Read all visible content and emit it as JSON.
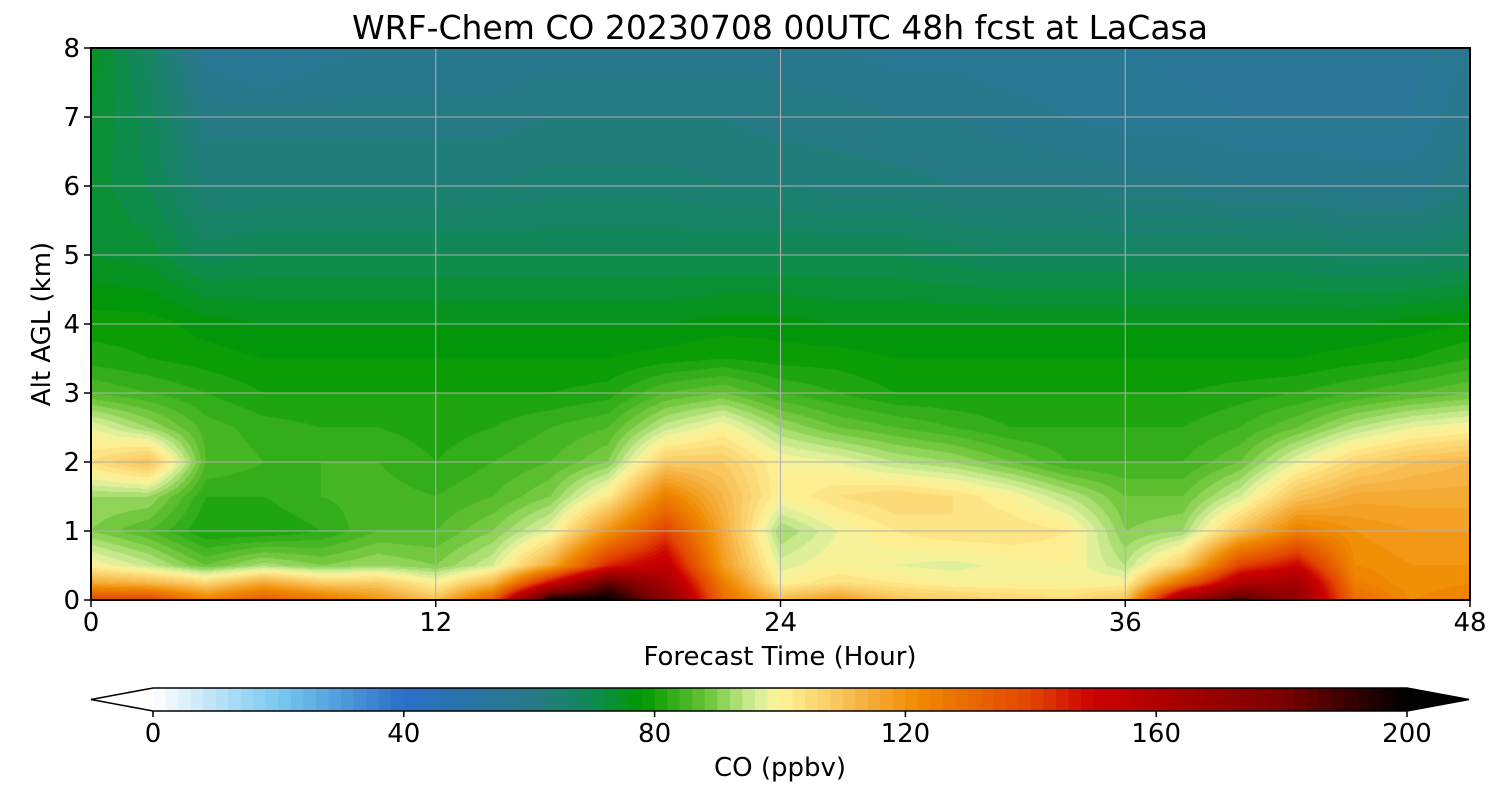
{
  "chart_data": {
    "type": "heatmap",
    "title": "WRF-Chem CO  20230708 00UTC 48h fcst at LaCasa",
    "xlabel": "Forecast Time (Hour)",
    "ylabel": "Alt AGL (km)",
    "xlim": [
      0,
      48
    ],
    "ylim": [
      0,
      8
    ],
    "x_ticks": [
      0,
      12,
      24,
      36,
      48
    ],
    "y_ticks": [
      0,
      1,
      2,
      3,
      4,
      5,
      6,
      7,
      8
    ],
    "grid": true,
    "x": [
      0,
      2,
      4,
      6,
      8,
      10,
      12,
      14,
      16,
      18,
      20,
      22,
      24,
      26,
      28,
      30,
      32,
      34,
      36,
      38,
      40,
      42,
      44,
      46,
      48
    ],
    "y": [
      0,
      0.25,
      0.5,
      1,
      1.5,
      2,
      2.5,
      3,
      3.5,
      4,
      5,
      6,
      7,
      8
    ],
    "z": [
      [
        140,
        140,
        125,
        135,
        128,
        120,
        110,
        135,
        200,
        200,
        175,
        130,
        112,
        118,
        110,
        108,
        106,
        105,
        110,
        170,
        190,
        170,
        130,
        122,
        125
      ],
      [
        115,
        112,
        106,
        115,
        108,
        108,
        100,
        112,
        150,
        185,
        165,
        125,
        100,
        104,
        102,
        100,
        100,
        100,
        100,
        130,
        160,
        165,
        125,
        120,
        122
      ],
      [
        100,
        95,
        88,
        93,
        90,
        92,
        90,
        96,
        115,
        145,
        155,
        118,
        97,
        100,
        98,
        97,
        99,
        100,
        94,
        108,
        140,
        150,
        122,
        120,
        120
      ],
      [
        90,
        86,
        80,
        80,
        82,
        86,
        86,
        90,
        98,
        120,
        140,
        115,
        92,
        98,
        102,
        104,
        104,
        102,
        90,
        92,
        110,
        125,
        120,
        118,
        118
      ],
      [
        92,
        92,
        82,
        82,
        84,
        85,
        84,
        86,
        90,
        102,
        125,
        112,
        100,
        104,
        106,
        104,
        100,
        94,
        88,
        88,
        96,
        110,
        115,
        115,
        115
      ],
      [
        104,
        110,
        86,
        84,
        84,
        84,
        82,
        84,
        86,
        90,
        108,
        108,
        100,
        98,
        94,
        92,
        88,
        84,
        84,
        84,
        88,
        98,
        106,
        110,
        112
      ],
      [
        98,
        92,
        85,
        83,
        82,
        82,
        81,
        82,
        84,
        86,
        95,
        100,
        92,
        88,
        86,
        84,
        82,
        82,
        82,
        82,
        84,
        88,
        94,
        98,
        100
      ],
      [
        86,
        84,
        82,
        80,
        80,
        80,
        80,
        80,
        80,
        81,
        86,
        88,
        84,
        82,
        80,
        80,
        80,
        80,
        80,
        80,
        81,
        82,
        84,
        86,
        88
      ],
      [
        81,
        80,
        79,
        78,
        78,
        78,
        78,
        78,
        78,
        78,
        79,
        80,
        79,
        79,
        78,
        78,
        78,
        78,
        78,
        78,
        78,
        78,
        79,
        80,
        82
      ],
      [
        79,
        79,
        77,
        76,
        76,
        76,
        76,
        76,
        76,
        76,
        76,
        77,
        77,
        76,
        76,
        76,
        76,
        76,
        76,
        76,
        76,
        76,
        76,
        77,
        78
      ],
      [
        74,
        73,
        69,
        70,
        70,
        70,
        70,
        70,
        70,
        70,
        70,
        70,
        70,
        70,
        70,
        69,
        68,
        68,
        68,
        68,
        68,
        68,
        67,
        67,
        68
      ],
      [
        73,
        70,
        64,
        64,
        64,
        64,
        64,
        64,
        65,
        65,
        65,
        64,
        64,
        63,
        63,
        62,
        62,
        62,
        61,
        61,
        60,
        60,
        59,
        59,
        62
      ],
      [
        74,
        69,
        61,
        61,
        61,
        61,
        61,
        61,
        62,
        62,
        62,
        62,
        61,
        61,
        60,
        60,
        59,
        58,
        57,
        57,
        56,
        56,
        56,
        56,
        60
      ],
      [
        75,
        67,
        57,
        54,
        57,
        58,
        58,
        58,
        59,
        59,
        59,
        59,
        59,
        58,
        57,
        57,
        56,
        56,
        56,
        55,
        54,
        54,
        55,
        55,
        58
      ]
    ],
    "colorbar": {
      "label": "CO  (ppbv)",
      "min": 0,
      "max": 200,
      "ticks": [
        0,
        40,
        80,
        120,
        160,
        200
      ],
      "extend": "both",
      "levels": 100
    }
  },
  "colors": {
    "stops": [
      [
        0,
        "#ffffff"
      ],
      [
        20,
        "#78c8f0"
      ],
      [
        40,
        "#2a6fc7"
      ],
      [
        60,
        "#28788a"
      ],
      [
        70,
        "#0f8a55"
      ],
      [
        78,
        "#009900"
      ],
      [
        88,
        "#66c233"
      ],
      [
        96,
        "#d5ee99"
      ],
      [
        100,
        "#fff399"
      ],
      [
        112,
        "#f7b84a"
      ],
      [
        122,
        "#f08a00"
      ],
      [
        140,
        "#e24400"
      ],
      [
        150,
        "#cc0000"
      ],
      [
        180,
        "#7a0000"
      ],
      [
        200,
        "#000000"
      ]
    ],
    "grid": "#b0b0b0"
  }
}
